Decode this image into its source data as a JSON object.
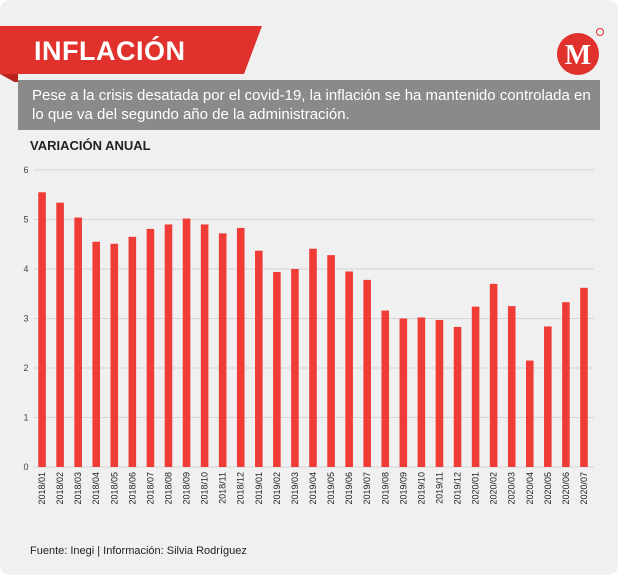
{
  "header": {
    "title": "INFLACIÓN",
    "logo_letter": "M"
  },
  "subtitle": "Pese a la crisis desatada por el covid-19, la inflación se ha mantenido controlada en lo que va del segundo año de la administración.",
  "section_label": "VARIACIÓN ANUAL",
  "source": "Fuente: Inegi | Información: Silvia Rodríguez",
  "colors": {
    "bar": "#f03c37",
    "banner": "#e0312d",
    "subtitle_bg": "#8a8a8a",
    "background": "#f0f0f0"
  },
  "chart_data": {
    "type": "bar",
    "title": "",
    "xlabel": "",
    "ylabel": "",
    "ylim": [
      0,
      6
    ],
    "yticks": [
      "0",
      "1",
      "2",
      "3",
      "4",
      "5",
      "6"
    ],
    "grid": true,
    "categories": [
      "2018/01",
      "2018/02",
      "2018/03",
      "2018/04",
      "2018/05",
      "2018/06",
      "2018/07",
      "2018/08",
      "2018/09",
      "2018/10",
      "2018/11",
      "2018/12",
      "2019/01",
      "2019/02",
      "2019/03",
      "2019/04",
      "2019/05",
      "2019/06",
      "2019/07",
      "2019/08",
      "2019/09",
      "2019/10",
      "2019/11",
      "2019/12",
      "2020/01",
      "2020/02",
      "2020/03",
      "2020/04",
      "2020/05",
      "2020/06",
      "2020/07"
    ],
    "values": [
      5.55,
      5.34,
      5.04,
      4.55,
      4.51,
      4.65,
      4.81,
      4.9,
      5.02,
      4.9,
      4.72,
      4.83,
      4.37,
      3.94,
      4.0,
      4.41,
      4.28,
      3.95,
      3.78,
      3.16,
      3.0,
      3.02,
      2.97,
      2.83,
      3.24,
      3.7,
      3.25,
      2.15,
      2.84,
      3.33,
      3.62
    ]
  }
}
